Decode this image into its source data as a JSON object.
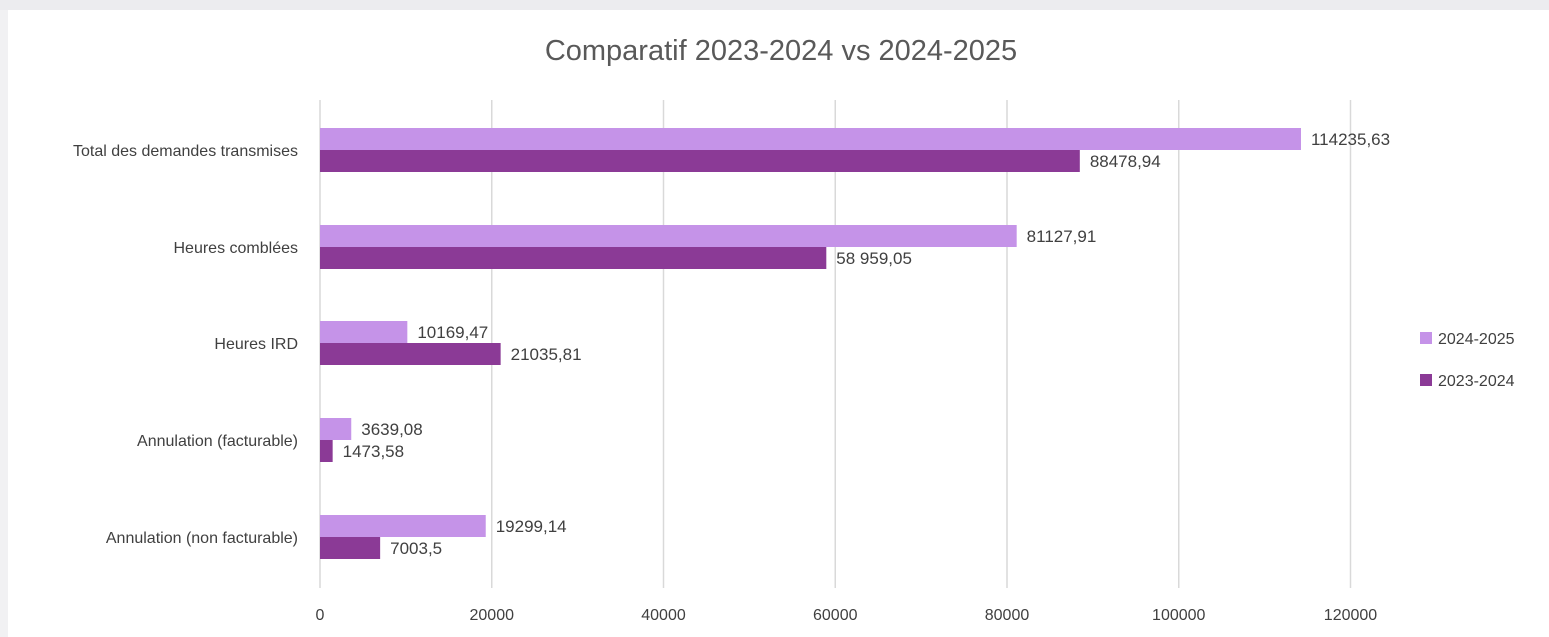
{
  "chart_data": {
    "type": "bar",
    "orientation": "horizontal",
    "title": "Comparatif 2023-2024 vs 2024-2025",
    "xlabel": "",
    "ylabel": "",
    "xlim": [
      0,
      130000
    ],
    "x_ticks": [
      "0",
      "20000",
      "40000",
      "60000",
      "80000",
      "100000",
      "120000"
    ],
    "categories": [
      "Total des demandes transmises",
      "Heures comblées",
      "Heures IRD",
      "Annulation (facturable)",
      "Annulation (non facturable)"
    ],
    "series": [
      {
        "name": "2024-2025",
        "color": "#c593e8",
        "values": [
          114235.63,
          81127.91,
          10169.47,
          3639.08,
          19299.14
        ],
        "labels": [
          "114235,63",
          "81127,91",
          "10169,47",
          "3639,08",
          "19299,14"
        ]
      },
      {
        "name": "2023-2024",
        "color": "#8b3a96",
        "values": [
          88478.94,
          58959.05,
          21035.81,
          1473.58,
          7003.5
        ],
        "labels": [
          "88478,94",
          "58 959,05",
          "21035,81",
          "1473,58",
          "7003,5"
        ]
      }
    ],
    "grid": true,
    "legend_position": "right"
  }
}
